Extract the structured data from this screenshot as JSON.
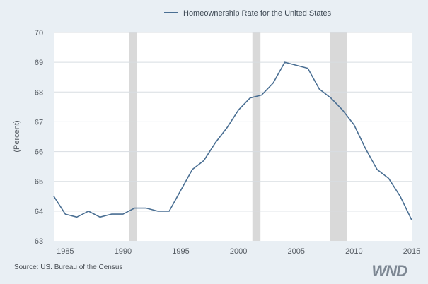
{
  "source_text": "Source: US. Bureau of the Census",
  "logo_text": "WND",
  "colors": {
    "background": "#e9eff4",
    "plot_background": "#ffffff",
    "line": "#4a6f93",
    "recession": "#d9d9d9"
  },
  "chart_data": {
    "type": "line",
    "title": "",
    "xlabel": "",
    "ylabel": "(Percent)",
    "legend": {
      "position": "top-center",
      "label": "Homeownership Rate for the United States"
    },
    "xlim": [
      1984,
      2015
    ],
    "ylim": [
      63,
      70
    ],
    "x_ticks": [
      1985,
      1990,
      1995,
      2000,
      2005,
      2010,
      2015
    ],
    "y_ticks": [
      63,
      64,
      65,
      66,
      67,
      68,
      69,
      70
    ],
    "grid": "horizontal",
    "recession_bands": [
      [
        1990.5,
        1991.2
      ],
      [
        2001.2,
        2001.9
      ],
      [
        2007.9,
        2009.4
      ]
    ],
    "series": [
      {
        "name": "Homeownership Rate for the United States",
        "x": [
          1984,
          1985,
          1986,
          1987,
          1988,
          1989,
          1990,
          1991,
          1992,
          1993,
          1994,
          1995,
          1996,
          1997,
          1998,
          1999,
          2000,
          2001,
          2002,
          2003,
          2004,
          2005,
          2006,
          2007,
          2008,
          2009,
          2010,
          2011,
          2012,
          2013,
          2014,
          2015
        ],
        "y": [
          64.5,
          63.9,
          63.8,
          64.0,
          63.8,
          63.9,
          63.9,
          64.1,
          64.1,
          64.0,
          64.0,
          64.7,
          65.4,
          65.7,
          66.3,
          66.8,
          67.4,
          67.8,
          67.9,
          68.3,
          69.0,
          68.9,
          68.8,
          68.1,
          67.8,
          67.4,
          66.9,
          66.1,
          65.4,
          65.1,
          64.5,
          63.7
        ]
      }
    ]
  }
}
